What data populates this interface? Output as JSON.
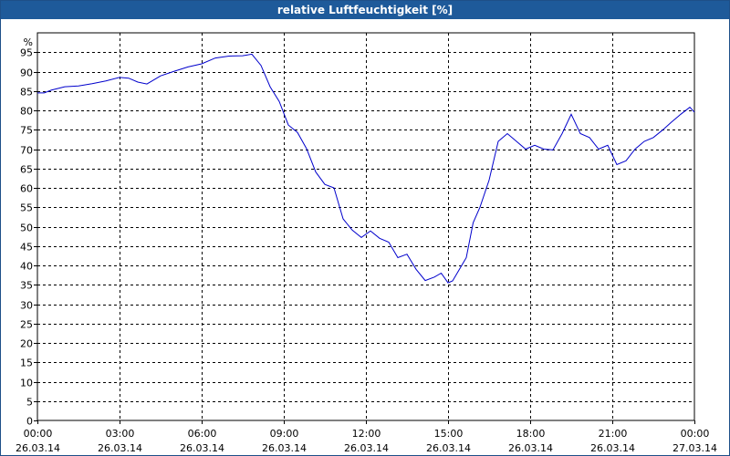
{
  "title": "relative Luftfeuchtigkeit [%]",
  "colors": {
    "titlebar": "#1e5a9a",
    "line": "#0000cc",
    "grid": "#000000"
  },
  "chart_data": {
    "type": "line",
    "title": "relative Luftfeuchtigkeit [%]",
    "ylabel": "%",
    "xlabel": "",
    "ylim": [
      0,
      100
    ],
    "y_ticks": [
      0,
      5,
      10,
      15,
      20,
      25,
      30,
      35,
      40,
      45,
      50,
      55,
      60,
      65,
      70,
      75,
      80,
      85,
      90,
      95
    ],
    "xlim": [
      "26.03.14 00:00",
      "27.03.14 00:00"
    ],
    "x_ticks": [
      {
        "time": "00:00",
        "date": "26.03.14"
      },
      {
        "time": "03:00",
        "date": "26.03.14"
      },
      {
        "time": "06:00",
        "date": "26.03.14"
      },
      {
        "time": "09:00",
        "date": "26.03.14"
      },
      {
        "time": "12:00",
        "date": "26.03.14"
      },
      {
        "time": "15:00",
        "date": "26.03.14"
      },
      {
        "time": "18:00",
        "date": "26.03.14"
      },
      {
        "time": "21:00",
        "date": "26.03.14"
      },
      {
        "time": "00:00",
        "date": "27.03.14"
      }
    ],
    "grid": true,
    "series": [
      {
        "x": [
          "00:00",
          "00:15",
          "00:30",
          "01:00",
          "01:30",
          "02:00",
          "02:30",
          "03:00",
          "03:20",
          "03:40",
          "04:00",
          "04:30",
          "05:00",
          "05:30",
          "06:00",
          "06:30",
          "07:00",
          "07:30",
          "07:50",
          "08:10",
          "08:30",
          "08:50",
          "09:10",
          "09:30",
          "09:50",
          "10:10",
          "10:30",
          "10:50",
          "11:10",
          "11:30",
          "11:50",
          "12:10",
          "12:30",
          "12:50",
          "13:10",
          "13:30",
          "13:50",
          "14:10",
          "14:30",
          "14:45",
          "15:00",
          "15:10",
          "15:20",
          "15:40",
          "15:55",
          "16:10",
          "16:30",
          "16:50",
          "17:10",
          "17:30",
          "17:50",
          "18:10",
          "18:30",
          "18:50",
          "19:10",
          "19:30",
          "19:50",
          "20:10",
          "20:30",
          "20:50",
          "21:10",
          "21:30",
          "21:50",
          "22:10",
          "22:30",
          "22:50",
          "23:10",
          "23:30",
          "23:50",
          "24:00"
        ],
        "y": [
          84.5,
          84.5,
          85.2,
          86.1,
          86.3,
          86.9,
          87.6,
          88.5,
          88.3,
          87.3,
          86.8,
          88.9,
          90.1,
          91.2,
          92.0,
          93.5,
          94.0,
          94.1,
          94.5,
          91.6,
          86.1,
          82.3,
          76.2,
          74.3,
          70.1,
          64.1,
          60.9,
          60.0,
          52.0,
          49.1,
          47.2,
          48.9,
          47.0,
          46.0,
          42.0,
          42.9,
          39.0,
          36.1,
          37.0,
          38.0,
          35.5,
          36.0,
          38.0,
          42.0,
          51.0,
          55.0,
          62.0,
          72.0,
          74.0,
          72.0,
          70.0,
          71.0,
          70.0,
          69.8,
          74.0,
          79.0,
          74.0,
          73.0,
          70.0,
          71.0,
          66.0,
          67.0,
          70.0,
          72.0,
          73.0,
          74.9,
          77.0,
          79.0,
          80.8,
          79.5
        ]
      }
    ]
  }
}
